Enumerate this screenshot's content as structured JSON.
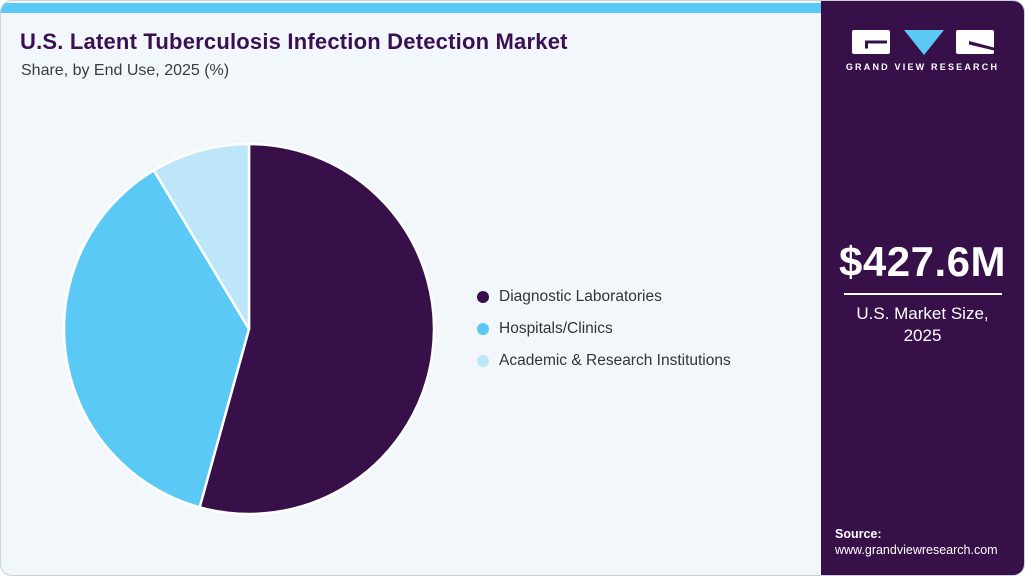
{
  "header": {
    "title": "U.S. Latent Tuberculosis Infection Detection Market",
    "subtitle": "Share, by End Use, 2025 (%)"
  },
  "chart_data": {
    "type": "pie",
    "title": "U.S. Latent Tuberculosis Infection Detection Market Share, by End Use, 2025 (%)",
    "categories": [
      "Diagnostic Laboratories",
      "Hospitals/Clinics",
      "Academic & Research Institutions"
    ],
    "values": [
      54.3,
      37.1,
      8.6
    ],
    "unit": "%",
    "colors": [
      "#37104a",
      "#5bc9f5",
      "#bde6f8"
    ],
    "legend_position": "right",
    "start_angle": "12 o'clock, clockwise",
    "data_labels": false
  },
  "sidebar": {
    "brand": "GRAND VIEW RESEARCH",
    "market_size": "$427.6M",
    "market_label_line1": "U.S. Market Size,",
    "market_label_line2": "2025",
    "source_label": "Source:",
    "source_url": "www.grandviewresearch.com"
  },
  "colors": {
    "accent_stripe": "#5bc9f5",
    "sidebar_bg": "#37104a",
    "card_bg": "#f2f7fb",
    "title_text": "#3a1053",
    "slice_separator": "#ffffff"
  }
}
